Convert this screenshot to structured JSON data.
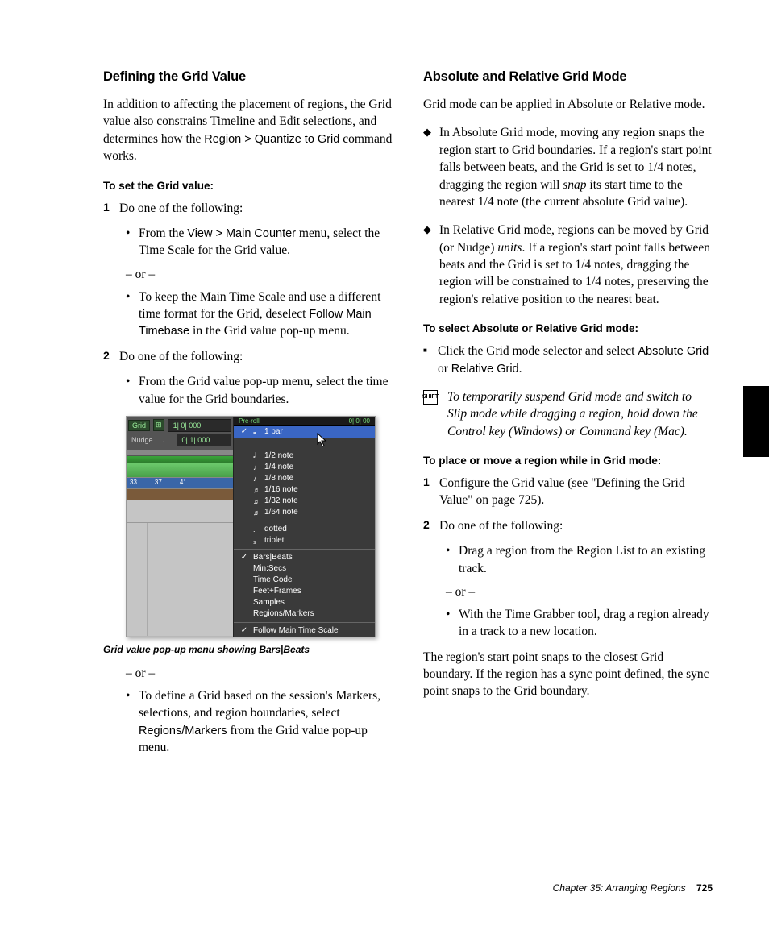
{
  "left": {
    "heading": "Defining the Grid Value",
    "intro_a": "In addition to affecting the placement of regions, the Grid value also constrains Timeline and Edit selections, and determines how the ",
    "intro_cmd": "Region > Quantize to Grid",
    "intro_b": " command works.",
    "sub1": "To set the Grid value:",
    "step1": "Do one of the following:",
    "b1a_a": "From the ",
    "b1a_cmd": "View > Main Counter",
    "b1a_b": " menu, select the Time Scale for the Grid value.",
    "or": "– or –",
    "b1b_a": "To keep the Main Time Scale and use a different time format for the Grid, deselect ",
    "b1b_cmd": "Follow Main Timebase",
    "b1b_b": " in the Grid value pop-up menu.",
    "step2": "Do one of the following:",
    "b2a": "From the Grid value pop-up menu, select the time value for the Grid boundaries.",
    "caption": "Grid value pop-up menu showing Bars|Beats",
    "b2b_a": "To define a Grid based on the session's Markers, selections, and region boundaries, select ",
    "b2b_cmd": "Regions/Markers",
    "b2b_b": " from the Grid value pop-up menu."
  },
  "right": {
    "heading": "Absolute and Relative Grid Mode",
    "p1": "Grid mode can be applied in Absolute or Relative mode.",
    "d1_a": "In Absolute Grid mode, moving any region snaps the region start to Grid boundaries. If a region's start point falls between beats, and the Grid is set to 1/4 notes, dragging the region will ",
    "d1_i": "snap",
    "d1_b": " its start time to the nearest 1/4 note (the current absolute Grid value).",
    "d2_a": "In Relative Grid mode, regions can be moved by Grid (or Nudge) ",
    "d2_i": "units",
    "d2_b": ". If a region's start point falls between beats and the Grid is set to 1/4 notes, dragging the region will be constrained to 1/4 notes, preserving the region's relative position to the nearest beat.",
    "sub1": "To select Absolute or Relative Grid mode:",
    "sq_a": "Click the Grid mode selector and select ",
    "sq_cmd1": "Absolute Grid",
    "sq_mid": " or ",
    "sq_cmd2": "Relative Grid",
    "sq_b": ".",
    "tip": "To temporarily suspend Grid mode and switch to Slip mode while dragging a region, hold down the Control key (Windows) or Command key (Mac).",
    "sub2": "To place or move a region while in Grid mode:",
    "r1": "Configure the Grid value (see \"Defining the Grid Value\" on page 725).",
    "r2": "Do one of the following:",
    "rb1": "Drag a region from the Region List to an existing track.",
    "or": "– or –",
    "rb2": "With the Time Grabber tool, drag a region already in a track to a new location.",
    "p_end": "The region's start point snaps to the closest Grid boundary. If the region has a sync point defined, the sync point snaps to the Grid boundary."
  },
  "shot": {
    "grid_label": "Grid",
    "grid_val": "1| 0| 000",
    "nudge_label": "Nudge",
    "nudge_val": "0| 1| 000",
    "preroll_l": "Pre-roll",
    "preroll_r": "0| 0| 00",
    "items1": [
      {
        "chk": "✓",
        "icon": "𝅝",
        "label": "1 bar",
        "sel": true
      },
      {
        "chk": "",
        "icon": "𝅗𝅥",
        "label": "1/2 note"
      },
      {
        "chk": "",
        "icon": "♩",
        "label": "1/4 note"
      },
      {
        "chk": "",
        "icon": "♪",
        "label": "1/8 note"
      },
      {
        "chk": "",
        "icon": "♬",
        "label": "1/16 note"
      },
      {
        "chk": "",
        "icon": "♬",
        "label": "1/32 note"
      },
      {
        "chk": "",
        "icon": "♬",
        "label": "1/64 note"
      }
    ],
    "items2": [
      {
        "chk": "",
        "icon": ".",
        "label": "dotted"
      },
      {
        "chk": "",
        "icon": "₃",
        "label": "triplet"
      }
    ],
    "items3": [
      {
        "chk": "✓",
        "label": "Bars|Beats"
      },
      {
        "chk": "",
        "label": "Min:Secs"
      },
      {
        "chk": "",
        "label": "Time Code"
      },
      {
        "chk": "",
        "label": "Feet+Frames"
      },
      {
        "chk": "",
        "label": "Samples"
      },
      {
        "chk": "",
        "label": "Regions/Markers"
      }
    ],
    "items4": [
      {
        "chk": "✓",
        "label": "Follow Main Time Scale"
      }
    ],
    "ruler": [
      "33",
      "37",
      "41"
    ]
  },
  "footer": {
    "chapter": "Chapter 35: Arranging Regions",
    "page": "725"
  },
  "colors": {
    "menu_bg": "#3a3a3a",
    "menu_sel": "#3a66c4",
    "lcd_green": "#9df09d",
    "track_green": "#49a049",
    "ruler_blue": "#3a66a8"
  }
}
